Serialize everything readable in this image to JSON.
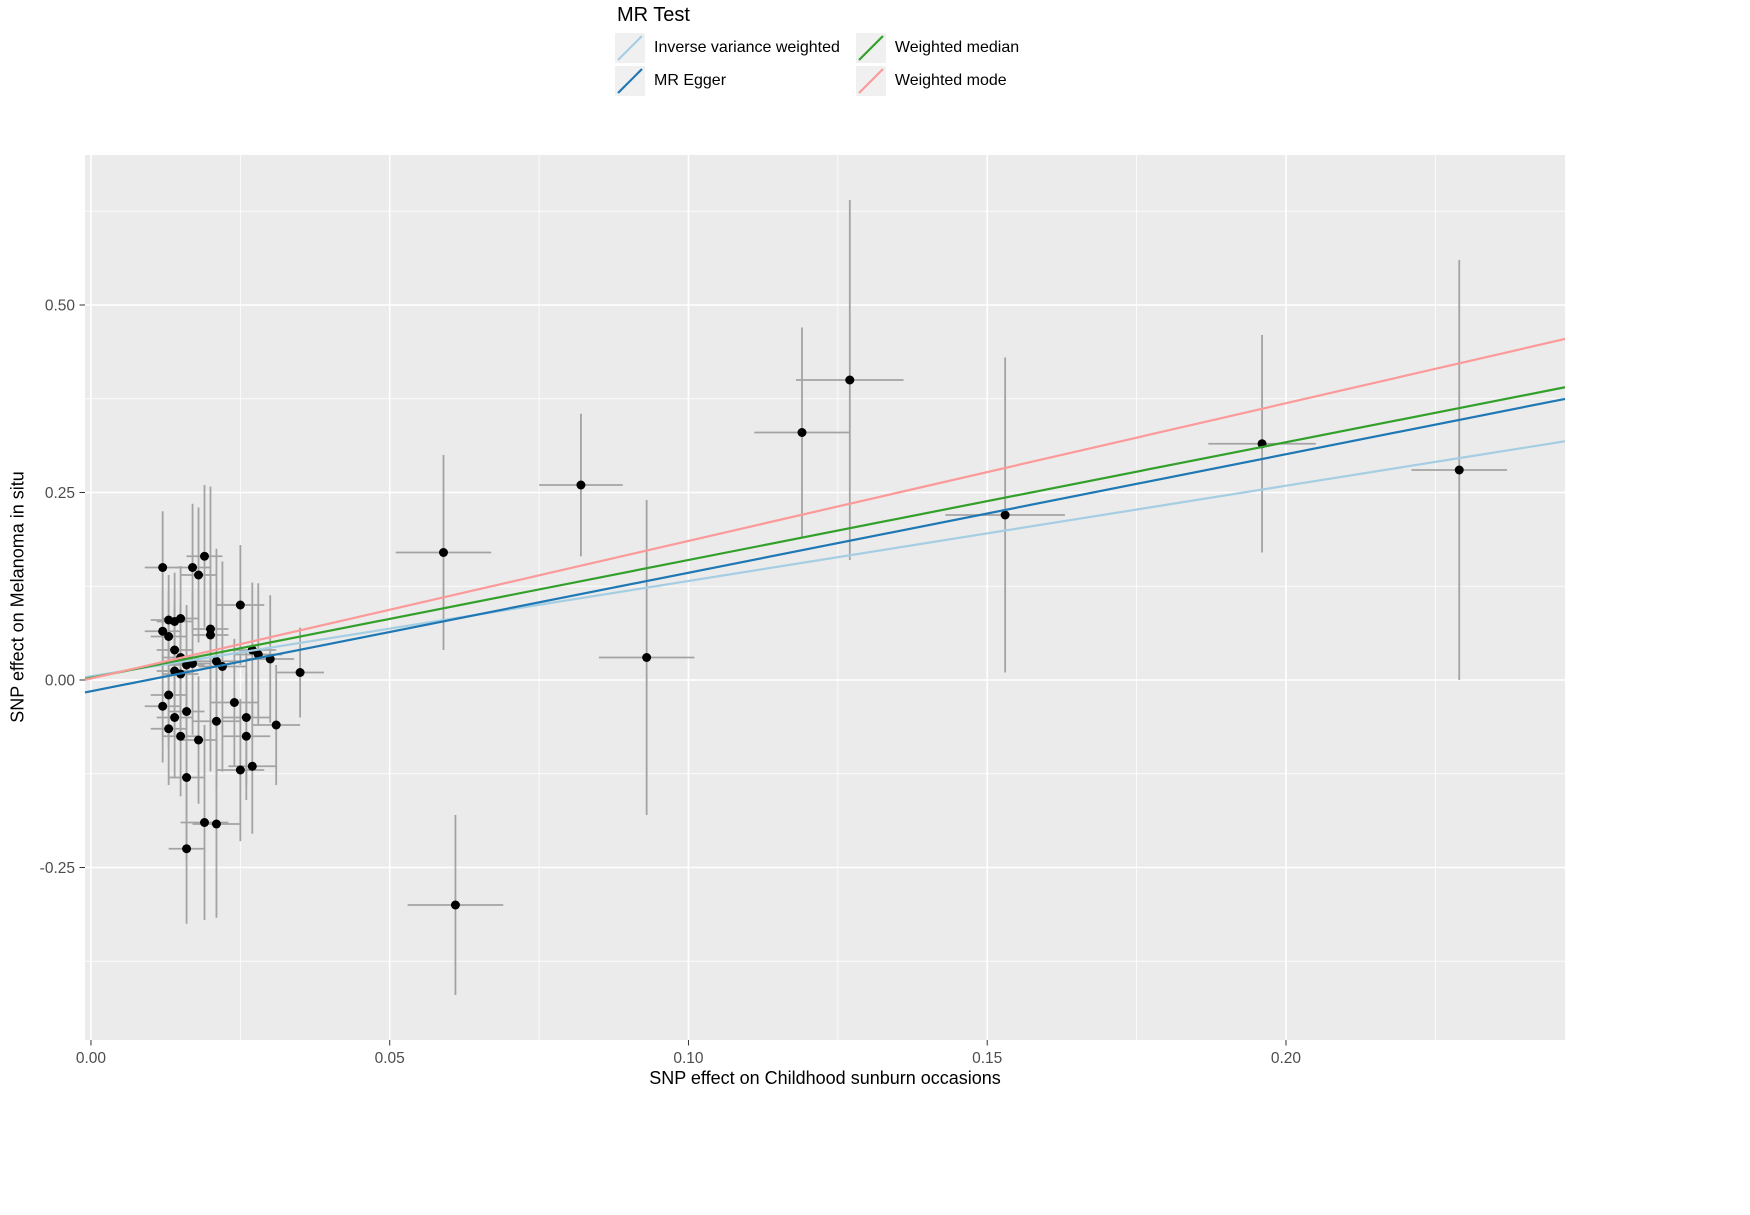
{
  "legend": {
    "title": "MR Test",
    "entries": [
      {
        "label": "Inverse variance weighted",
        "color": "#a6cee3"
      },
      {
        "label": "MR Egger",
        "color": "#1f78b4"
      },
      {
        "label": "Weighted median",
        "color": "#33a02c"
      },
      {
        "label": "Weighted mode",
        "color": "#fb9a99"
      }
    ]
  },
  "chart_data": {
    "type": "scatter",
    "title": "",
    "xlabel": "SNP effect on Childhood sunburn occasions",
    "ylabel": "SNP effect on Melanoma in situ",
    "xlim": [
      -0.001,
      0.2467
    ],
    "ylim": [
      -0.48,
      0.7
    ],
    "x_ticks": [
      0.0,
      0.05,
      0.1,
      0.15,
      0.2
    ],
    "x_tick_labels": [
      "0.00",
      "0.05",
      "0.10",
      "0.15",
      "0.20"
    ],
    "y_ticks": [
      -0.25,
      0.0,
      0.25,
      0.5
    ],
    "y_tick_labels": [
      "-0.25",
      "0.00",
      "0.25",
      "0.50"
    ],
    "grid": true,
    "legend_position": "top",
    "panel_bg": "#ebebeb",
    "grid_color": "#ffffff",
    "point_color": "#000000",
    "errorbar_color": "#a3a3a3",
    "points": [
      [
        0.012,
        0.15,
        0.075,
        0.003
      ],
      [
        0.017,
        0.15,
        0.085,
        0.003
      ],
      [
        0.018,
        0.14,
        0.09,
        0.003
      ],
      [
        0.019,
        0.165,
        0.095,
        0.003
      ],
      [
        0.025,
        0.1,
        0.08,
        0.004
      ],
      [
        0.013,
        0.08,
        0.06,
        0.003
      ],
      [
        0.014,
        0.078,
        0.065,
        0.003
      ],
      [
        0.015,
        0.082,
        0.07,
        0.003
      ],
      [
        0.012,
        0.065,
        0.055,
        0.003
      ],
      [
        0.013,
        0.058,
        0.06,
        0.003
      ],
      [
        0.02,
        0.06,
        0.075,
        0.003
      ],
      [
        0.02,
        0.068,
        0.19,
        0.003
      ],
      [
        0.014,
        0.04,
        0.065,
        0.003
      ],
      [
        0.015,
        0.03,
        0.07,
        0.003
      ],
      [
        0.016,
        0.02,
        0.08,
        0.003
      ],
      [
        0.014,
        0.012,
        0.085,
        0.003
      ],
      [
        0.015,
        0.008,
        0.09,
        0.003
      ],
      [
        0.017,
        0.022,
        0.095,
        0.003
      ],
      [
        0.021,
        0.025,
        0.15,
        0.004
      ],
      [
        0.022,
        0.018,
        0.14,
        0.004
      ],
      [
        0.027,
        0.04,
        0.09,
        0.004
      ],
      [
        0.028,
        0.034,
        0.095,
        0.004
      ],
      [
        0.03,
        0.028,
        0.085,
        0.004
      ],
      [
        0.035,
        0.01,
        0.06,
        0.004
      ],
      [
        0.013,
        -0.02,
        0.07,
        0.003
      ],
      [
        0.012,
        -0.035,
        0.075,
        0.003
      ],
      [
        0.014,
        -0.05,
        0.08,
        0.003
      ],
      [
        0.016,
        -0.042,
        0.085,
        0.003
      ],
      [
        0.013,
        -0.065,
        0.075,
        0.003
      ],
      [
        0.015,
        -0.075,
        0.08,
        0.003
      ],
      [
        0.018,
        -0.08,
        0.085,
        0.003
      ],
      [
        0.021,
        -0.055,
        0.09,
        0.004
      ],
      [
        0.024,
        -0.03,
        0.085,
        0.004
      ],
      [
        0.026,
        -0.05,
        0.09,
        0.004
      ],
      [
        0.026,
        -0.075,
        0.085,
        0.004
      ],
      [
        0.031,
        -0.06,
        0.08,
        0.004
      ],
      [
        0.016,
        -0.13,
        0.11,
        0.003
      ],
      [
        0.025,
        -0.12,
        0.095,
        0.004
      ],
      [
        0.027,
        -0.115,
        0.09,
        0.004
      ],
      [
        0.019,
        -0.19,
        0.13,
        0.004
      ],
      [
        0.021,
        -0.192,
        0.125,
        0.004
      ],
      [
        0.016,
        -0.225,
        0.1,
        0.003
      ],
      [
        0.059,
        0.17,
        0.13,
        0.008
      ],
      [
        0.061,
        -0.3,
        0.12,
        0.008
      ],
      [
        0.082,
        0.26,
        0.095,
        0.007
      ],
      [
        0.093,
        0.03,
        0.21,
        0.008
      ],
      [
        0.119,
        0.33,
        0.14,
        0.008
      ],
      [
        0.127,
        0.4,
        0.24,
        0.009
      ],
      [
        0.153,
        0.22,
        0.21,
        0.01
      ],
      [
        0.196,
        0.315,
        0.145,
        0.009
      ],
      [
        0.229,
        0.28,
        0.28,
        0.008
      ]
    ],
    "lines": [
      {
        "name": "Inverse variance weighted",
        "color": "#a6cee3",
        "intercept": 0.005,
        "slope": 1.27
      },
      {
        "name": "MR Egger",
        "color": "#1f78b4",
        "intercept": -0.015,
        "slope": 1.58
      },
      {
        "name": "Weighted median",
        "color": "#33a02c",
        "intercept": 0.003,
        "slope": 1.57
      },
      {
        "name": "Weighted mode",
        "color": "#fb9a99",
        "intercept": 0.002,
        "slope": 1.835
      }
    ]
  }
}
